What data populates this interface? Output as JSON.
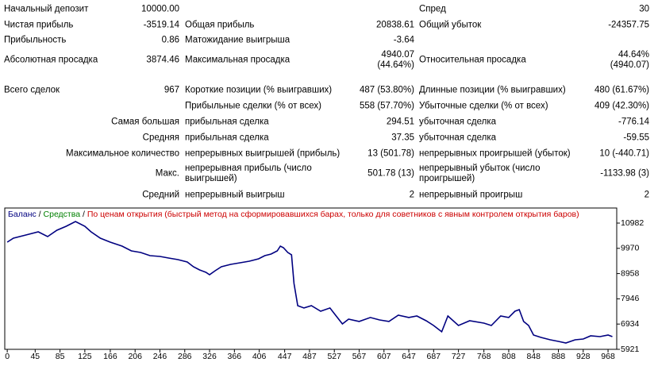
{
  "report": {
    "rows": [
      [
        "Начальный депозит",
        "10000.00",
        "Спред",
        "30"
      ],
      [
        "Чистая прибыль",
        "-3519.14",
        "Общая прибыль",
        "20838.61",
        "Общий убыток",
        "-24357.75"
      ],
      [
        "Прибыльность",
        "0.86",
        "Матожидание выигрыша",
        "-3.64"
      ],
      [
        "Абсолютная просадка",
        "3874.46",
        "Максимальная просадка",
        "4940.07\n(44.64%)",
        "Относительная просадка",
        "44.64%\n(4940.07)"
      ],
      [
        "Всего сделок",
        "967",
        "Короткие позиции (% выигравших)",
        "487 (53.80%)",
        "Длинные позиции (% выигравших)",
        "480 (61.67%)"
      ],
      [
        "Прибыльные сделки (% от всех)",
        "558 (57.70%)",
        "Убыточные сделки (% от всех)",
        "409 (42.30%)"
      ],
      [
        "Самая большая",
        "прибыльная сделка",
        "294.51",
        "убыточная сделка",
        "-776.14"
      ],
      [
        "Средняя",
        "прибыльная сделка",
        "37.35",
        "убыточная сделка",
        "-59.55"
      ],
      [
        "Максимальное количество",
        "непрерывных выигрышей (прибыль)",
        "13 (501.78)",
        "непрерывных проигрышей (убыток)",
        "10 (-440.71)"
      ],
      [
        "Макс.",
        "непрерывная прибыль (число выигрышей)",
        "501.78 (13)",
        "непрерывный убыток (число проигрышей)",
        "-1133.98 (3)"
      ],
      [
        "Средний",
        "непрерывный выигрыш",
        "2",
        "непрерывный проигрыш",
        "2"
      ]
    ]
  },
  "chart_data": {
    "type": "line",
    "equity_label": "Средства",
    "equity_color": "#008000",
    "note": "По ценам открытия (быстрый метод на сформировавшихся барах, только для советников с явным контролем открытия баров)",
    "note_color": "#cc0000",
    "x": [
      0,
      10,
      30,
      50,
      65,
      80,
      95,
      110,
      125,
      135,
      150,
      166,
      185,
      200,
      215,
      230,
      246,
      260,
      275,
      290,
      300,
      310,
      320,
      326,
      335,
      345,
      360,
      375,
      390,
      405,
      415,
      425,
      435,
      440,
      445,
      452,
      458,
      462,
      468,
      478,
      490,
      505,
      520,
      527,
      540,
      550,
      567,
      585,
      600,
      615,
      630,
      647,
      660,
      675,
      687,
      700,
      710,
      727,
      745,
      768,
      780,
      795,
      808,
      818,
      825,
      832,
      840,
      848,
      860,
      875,
      888,
      900,
      915,
      928,
      940,
      955,
      968,
      975
    ],
    "series": [
      {
        "name": "Баланс",
        "color": "#000080",
        "values": [
          10218,
          10377,
          10505,
          10632,
          10441,
          10696,
          10855,
          11046,
          10855,
          10632,
          10377,
          10218,
          10059,
          9868,
          9805,
          9677,
          9645,
          9582,
          9518,
          9423,
          9232,
          9105,
          9009,
          8914,
          9073,
          9232,
          9327,
          9391,
          9455,
          9550,
          9677,
          9741,
          9868,
          10059,
          9996,
          9805,
          9709,
          8564,
          7673,
          7578,
          7673,
          7450,
          7578,
          7355,
          6941,
          7132,
          7037,
          7196,
          7100,
          7037,
          7291,
          7196,
          7259,
          7068,
          6877,
          6623,
          7259,
          6877,
          7068,
          6973,
          6877,
          7259,
          7196,
          7450,
          7514,
          7037,
          6877,
          6495,
          6400,
          6304,
          6240,
          6177,
          6304,
          6336,
          6463,
          6431,
          6495,
          6431
        ]
      }
    ],
    "xlim": [
      -4,
      982
    ],
    "xticks": [
      0,
      45,
      85,
      125,
      166,
      206,
      246,
      286,
      326,
      366,
      406,
      447,
      487,
      527,
      567,
      607,
      647,
      687,
      727,
      768,
      808,
      848,
      888,
      928,
      968
    ],
    "ylim": [
      5921,
      11587
    ],
    "yticks": [
      5921,
      6934,
      7946,
      8958,
      9970,
      10982
    ]
  }
}
